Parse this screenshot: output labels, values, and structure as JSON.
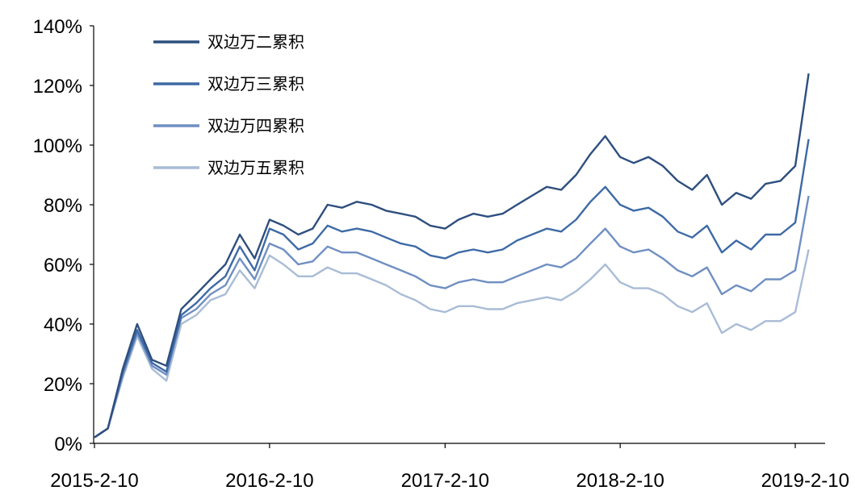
{
  "chart_data": {
    "type": "line",
    "title": "",
    "xlabel": "",
    "ylabel": "",
    "x_tick_labels": [
      "2015-2-10",
      "2016-2-10",
      "2017-2-10",
      "2018-2-10",
      "2019-2-10"
    ],
    "y_tick_labels": [
      "0%",
      "20%",
      "40%",
      "60%",
      "80%",
      "100%",
      "120%",
      "140%"
    ],
    "ylim": [
      0,
      140
    ],
    "y_unit": "%",
    "grid": false,
    "legend_position": "top-left",
    "x": [
      "2015-02-10",
      "2015-03-10",
      "2015-04-10",
      "2015-05-10",
      "2015-06-10",
      "2015-07-10",
      "2015-08-10",
      "2015-09-10",
      "2015-10-10",
      "2015-11-10",
      "2015-12-10",
      "2016-01-10",
      "2016-02-10",
      "2016-03-10",
      "2016-04-10",
      "2016-05-10",
      "2016-06-10",
      "2016-07-10",
      "2016-08-10",
      "2016-09-10",
      "2016-10-10",
      "2016-11-10",
      "2016-12-10",
      "2017-01-10",
      "2017-02-10",
      "2017-03-10",
      "2017-04-10",
      "2017-05-10",
      "2017-06-10",
      "2017-07-10",
      "2017-08-10",
      "2017-09-10",
      "2017-10-10",
      "2017-11-10",
      "2017-12-10",
      "2018-01-10",
      "2018-02-10",
      "2018-03-10",
      "2018-04-10",
      "2018-05-10",
      "2018-06-10",
      "2018-07-10",
      "2018-08-10",
      "2018-09-10",
      "2018-10-10",
      "2018-11-10",
      "2018-12-10",
      "2019-01-10",
      "2019-02-10",
      "2019-03-10"
    ],
    "series": [
      {
        "name": "双边万二累积",
        "color": "#2e4f7e",
        "values": [
          2,
          5,
          25,
          40,
          28,
          26,
          45,
          50,
          55,
          60,
          70,
          62,
          75,
          73,
          70,
          72,
          80,
          79,
          81,
          80,
          78,
          77,
          76,
          73,
          72,
          75,
          77,
          76,
          77,
          80,
          83,
          86,
          85,
          90,
          97,
          103,
          96,
          94,
          96,
          93,
          88,
          85,
          90,
          80,
          84,
          82,
          87,
          88,
          93,
          124
        ]
      },
      {
        "name": "双边万三累积",
        "color": "#3e6aa6",
        "values": [
          2,
          5,
          24,
          38,
          27,
          24,
          43,
          47,
          52,
          56,
          66,
          58,
          72,
          70,
          65,
          67,
          73,
          71,
          72,
          71,
          69,
          67,
          66,
          63,
          62,
          64,
          65,
          64,
          65,
          68,
          70,
          72,
          71,
          75,
          81,
          86,
          80,
          78,
          79,
          76,
          71,
          69,
          73,
          64,
          68,
          65,
          70,
          70,
          74,
          102
        ]
      },
      {
        "name": "双边万四累积",
        "color": "#6f8fc2",
        "values": [
          2,
          5,
          23,
          37,
          26,
          23,
          42,
          45,
          50,
          53,
          62,
          55,
          67,
          65,
          60,
          61,
          66,
          64,
          64,
          62,
          60,
          58,
          56,
          53,
          52,
          54,
          55,
          54,
          54,
          56,
          58,
          60,
          59,
          62,
          67,
          72,
          66,
          64,
          65,
          62,
          58,
          56,
          59,
          50,
          53,
          51,
          55,
          55,
          58,
          83
        ]
      },
      {
        "name": "双边万五累积",
        "color": "#a9bcd6",
        "values": [
          2,
          5,
          22,
          36,
          25,
          21,
          40,
          43,
          48,
          50,
          58,
          52,
          63,
          60,
          56,
          56,
          59,
          57,
          57,
          55,
          53,
          50,
          48,
          45,
          44,
          46,
          46,
          45,
          45,
          47,
          48,
          49,
          48,
          51,
          55,
          60,
          54,
          52,
          52,
          50,
          46,
          44,
          47,
          37,
          40,
          38,
          41,
          41,
          44,
          65
        ]
      }
    ]
  }
}
